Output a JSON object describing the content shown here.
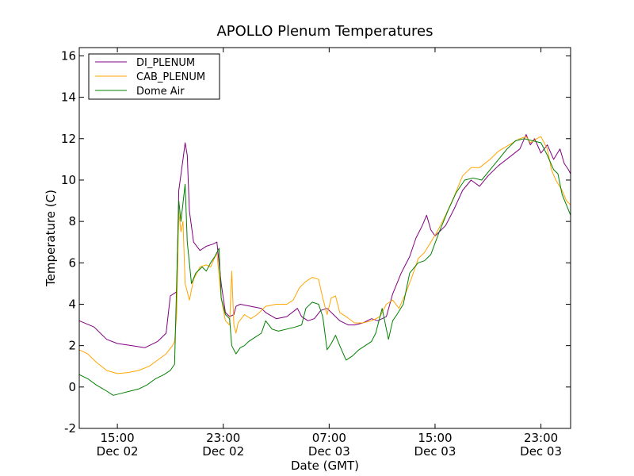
{
  "chart_data": {
    "type": "line",
    "title": "APOLLO Plenum Temperatures",
    "xlabel": "Date (GMT)",
    "ylabel": "Temperature (C)",
    "xlim_hours": [
      11.2,
      34.4
    ],
    "ylim": [
      -2,
      16.4
    ],
    "y_ticks": [
      -2,
      0,
      2,
      4,
      6,
      8,
      10,
      12,
      14,
      16
    ],
    "y_tick_labels": [
      "-2",
      "0",
      "2",
      "4",
      "6",
      "8",
      "10",
      "12",
      "14",
      "16"
    ],
    "x_ticks": [
      {
        "hour": 13,
        "time": "15:00",
        "date": "Dec 02"
      },
      {
        "hour": 18,
        "time": "23:00",
        "date": "Dec 02"
      },
      {
        "hour": 23,
        "time": "07:00",
        "date": "Dec 03"
      },
      {
        "hour": 28,
        "time": "15:00",
        "date": "Dec 03"
      },
      {
        "hour": 33,
        "time": "23:00",
        "date": "Dec 03"
      }
    ],
    "legend_position": "top-left",
    "series": [
      {
        "name": "DI_PLENUM",
        "color": "#800080",
        "points": [
          [
            11.2,
            3.2
          ],
          [
            11.9,
            2.9
          ],
          [
            12.5,
            2.3
          ],
          [
            13.0,
            2.1
          ],
          [
            13.7,
            2.0
          ],
          [
            14.3,
            1.9
          ],
          [
            14.9,
            2.2
          ],
          [
            15.3,
            2.6
          ],
          [
            15.5,
            4.4
          ],
          [
            15.8,
            4.6
          ],
          [
            15.9,
            9.5
          ],
          [
            16.1,
            11.0
          ],
          [
            16.2,
            11.8
          ],
          [
            16.3,
            11.2
          ],
          [
            16.4,
            8.5
          ],
          [
            16.6,
            7.0
          ],
          [
            16.9,
            6.6
          ],
          [
            17.2,
            6.8
          ],
          [
            17.5,
            6.9
          ],
          [
            17.7,
            7.0
          ],
          [
            17.9,
            5.0
          ],
          [
            18.1,
            3.6
          ],
          [
            18.3,
            3.4
          ],
          [
            18.5,
            3.5
          ],
          [
            18.6,
            3.9
          ],
          [
            18.8,
            4.0
          ],
          [
            19.3,
            3.9
          ],
          [
            19.8,
            3.8
          ],
          [
            20.0,
            3.6
          ],
          [
            20.5,
            3.3
          ],
          [
            21.0,
            3.4
          ],
          [
            21.5,
            3.8
          ],
          [
            21.7,
            3.4
          ],
          [
            22.0,
            3.2
          ],
          [
            22.3,
            3.3
          ],
          [
            22.6,
            3.7
          ],
          [
            22.9,
            3.8
          ],
          [
            23.2,
            3.5
          ],
          [
            23.5,
            3.2
          ],
          [
            23.9,
            3.0
          ],
          [
            24.2,
            3.0
          ],
          [
            24.6,
            3.1
          ],
          [
            25.0,
            3.3
          ],
          [
            25.3,
            3.2
          ],
          [
            25.7,
            3.4
          ],
          [
            26.0,
            4.5
          ],
          [
            26.4,
            5.5
          ],
          [
            26.8,
            6.3
          ],
          [
            27.1,
            7.2
          ],
          [
            27.4,
            7.8
          ],
          [
            27.6,
            8.3
          ],
          [
            27.8,
            7.6
          ],
          [
            28.0,
            7.3
          ],
          [
            28.5,
            7.8
          ],
          [
            28.9,
            8.6
          ],
          [
            29.3,
            9.5
          ],
          [
            29.7,
            10.0
          ],
          [
            30.1,
            9.7
          ],
          [
            30.5,
            10.2
          ],
          [
            31.0,
            10.7
          ],
          [
            31.5,
            11.1
          ],
          [
            32.0,
            11.5
          ],
          [
            32.3,
            12.2
          ],
          [
            32.5,
            11.7
          ],
          [
            32.7,
            12.0
          ],
          [
            33.0,
            11.3
          ],
          [
            33.3,
            11.7
          ],
          [
            33.6,
            11.0
          ],
          [
            33.9,
            11.5
          ],
          [
            34.1,
            10.8
          ],
          [
            34.3,
            10.5
          ],
          [
            34.4,
            10.3
          ]
        ]
      },
      {
        "name": "CAB_PLENUM",
        "color": "#FFA500",
        "points": [
          [
            11.2,
            1.8
          ],
          [
            11.6,
            1.6
          ],
          [
            12.0,
            1.2
          ],
          [
            12.5,
            0.8
          ],
          [
            13.0,
            0.65
          ],
          [
            13.5,
            0.7
          ],
          [
            14.0,
            0.8
          ],
          [
            14.5,
            1.0
          ],
          [
            14.9,
            1.3
          ],
          [
            15.3,
            1.6
          ],
          [
            15.6,
            2.0
          ],
          [
            15.7,
            2.2
          ],
          [
            15.8,
            3.5
          ],
          [
            15.9,
            8.5
          ],
          [
            16.0,
            7.5
          ],
          [
            16.1,
            8.0
          ],
          [
            16.2,
            5.0
          ],
          [
            16.4,
            4.2
          ],
          [
            16.6,
            5.2
          ],
          [
            16.9,
            5.8
          ],
          [
            17.2,
            5.9
          ],
          [
            17.4,
            5.8
          ],
          [
            17.7,
            6.5
          ],
          [
            17.9,
            4.3
          ],
          [
            18.1,
            3.2
          ],
          [
            18.3,
            3.0
          ],
          [
            18.4,
            5.6
          ],
          [
            18.5,
            3.0
          ],
          [
            18.6,
            2.6
          ],
          [
            18.7,
            3.1
          ],
          [
            19.0,
            3.5
          ],
          [
            19.3,
            3.3
          ],
          [
            19.6,
            3.5
          ],
          [
            20.0,
            3.9
          ],
          [
            20.5,
            4.0
          ],
          [
            21.0,
            4.0
          ],
          [
            21.3,
            4.2
          ],
          [
            21.6,
            4.8
          ],
          [
            21.9,
            5.1
          ],
          [
            22.2,
            5.3
          ],
          [
            22.5,
            5.2
          ],
          [
            22.7,
            4.3
          ],
          [
            22.9,
            3.5
          ],
          [
            23.1,
            4.3
          ],
          [
            23.3,
            4.4
          ],
          [
            23.5,
            3.6
          ],
          [
            23.8,
            3.4
          ],
          [
            24.2,
            3.1
          ],
          [
            24.6,
            3.1
          ],
          [
            25.0,
            3.2
          ],
          [
            25.4,
            3.4
          ],
          [
            25.7,
            4.0
          ],
          [
            26.0,
            4.2
          ],
          [
            26.3,
            3.8
          ],
          [
            26.6,
            4.5
          ],
          [
            26.9,
            5.3
          ],
          [
            27.2,
            6.2
          ],
          [
            27.5,
            6.5
          ],
          [
            27.8,
            7.0
          ],
          [
            28.1,
            7.5
          ],
          [
            28.5,
            8.3
          ],
          [
            28.9,
            9.2
          ],
          [
            29.3,
            10.2
          ],
          [
            29.7,
            10.6
          ],
          [
            30.1,
            10.6
          ],
          [
            30.6,
            11.0
          ],
          [
            31.0,
            11.4
          ],
          [
            31.5,
            11.7
          ],
          [
            32.0,
            12.0
          ],
          [
            32.3,
            12.1
          ],
          [
            32.5,
            11.8
          ],
          [
            32.8,
            12.0
          ],
          [
            33.0,
            12.1
          ],
          [
            33.3,
            11.5
          ],
          [
            33.5,
            10.5
          ],
          [
            33.7,
            10.0
          ],
          [
            34.0,
            9.5
          ],
          [
            34.2,
            9.0
          ],
          [
            34.4,
            8.8
          ]
        ]
      },
      {
        "name": "Dome Air",
        "color": "#008000",
        "points": [
          [
            11.2,
            0.6
          ],
          [
            11.6,
            0.4
          ],
          [
            12.0,
            0.1
          ],
          [
            12.5,
            -0.2
          ],
          [
            12.8,
            -0.4
          ],
          [
            13.2,
            -0.3
          ],
          [
            13.6,
            -0.2
          ],
          [
            14.0,
            -0.1
          ],
          [
            14.4,
            0.1
          ],
          [
            14.8,
            0.4
          ],
          [
            15.2,
            0.6
          ],
          [
            15.5,
            0.8
          ],
          [
            15.7,
            1.1
          ],
          [
            15.8,
            5.0
          ],
          [
            15.9,
            9.0
          ],
          [
            16.0,
            8.0
          ],
          [
            16.2,
            9.8
          ],
          [
            16.3,
            7.0
          ],
          [
            16.5,
            5.0
          ],
          [
            16.7,
            5.5
          ],
          [
            17.0,
            5.8
          ],
          [
            17.2,
            5.6
          ],
          [
            17.4,
            6.0
          ],
          [
            17.6,
            6.3
          ],
          [
            17.8,
            6.7
          ],
          [
            17.9,
            4.3
          ],
          [
            18.1,
            3.5
          ],
          [
            18.3,
            3.3
          ],
          [
            18.4,
            2.0
          ],
          [
            18.6,
            1.6
          ],
          [
            18.8,
            1.9
          ],
          [
            19.0,
            2.0
          ],
          [
            19.2,
            2.2
          ],
          [
            19.5,
            2.4
          ],
          [
            19.8,
            2.6
          ],
          [
            20.0,
            3.2
          ],
          [
            20.3,
            2.8
          ],
          [
            20.6,
            2.7
          ],
          [
            21.0,
            2.8
          ],
          [
            21.4,
            2.9
          ],
          [
            21.7,
            3.0
          ],
          [
            21.9,
            3.8
          ],
          [
            22.2,
            4.1
          ],
          [
            22.5,
            4.0
          ],
          [
            22.7,
            3.4
          ],
          [
            22.9,
            1.8
          ],
          [
            23.1,
            2.1
          ],
          [
            23.3,
            2.5
          ],
          [
            23.5,
            2.0
          ],
          [
            23.8,
            1.3
          ],
          [
            24.1,
            1.5
          ],
          [
            24.4,
            1.8
          ],
          [
            24.7,
            2.0
          ],
          [
            25.0,
            2.2
          ],
          [
            25.2,
            2.6
          ],
          [
            25.5,
            3.8
          ],
          [
            25.8,
            2.3
          ],
          [
            26.0,
            3.2
          ],
          [
            26.2,
            3.5
          ],
          [
            26.5,
            4.0
          ],
          [
            26.8,
            5.5
          ],
          [
            27.2,
            6.0
          ],
          [
            27.5,
            6.1
          ],
          [
            27.8,
            6.4
          ],
          [
            28.2,
            7.5
          ],
          [
            28.6,
            8.5
          ],
          [
            29.0,
            9.4
          ],
          [
            29.4,
            10.0
          ],
          [
            29.8,
            10.1
          ],
          [
            30.2,
            10.0
          ],
          [
            30.6,
            10.5
          ],
          [
            31.0,
            11.0
          ],
          [
            31.4,
            11.5
          ],
          [
            31.8,
            11.9
          ],
          [
            32.2,
            12.0
          ],
          [
            32.6,
            11.9
          ],
          [
            33.0,
            11.8
          ],
          [
            33.3,
            11.2
          ],
          [
            33.6,
            10.5
          ],
          [
            33.8,
            10.3
          ],
          [
            34.0,
            9.3
          ],
          [
            34.2,
            8.8
          ],
          [
            34.4,
            8.3
          ]
        ]
      }
    ]
  }
}
